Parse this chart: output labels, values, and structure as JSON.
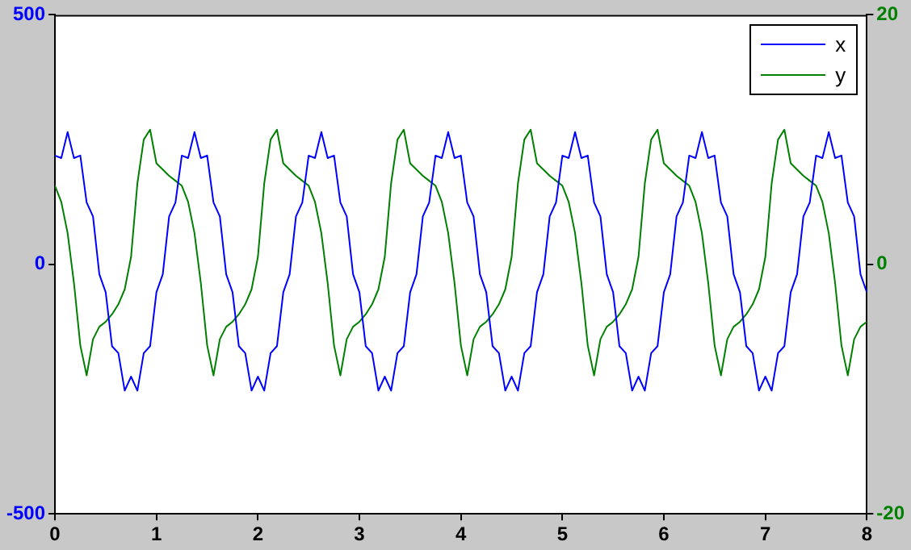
{
  "chart_data": {
    "type": "line",
    "xlim": [
      0,
      8
    ],
    "xticks": [
      0,
      1,
      2,
      3,
      4,
      5,
      6,
      7,
      8
    ],
    "ylim": [
      -500,
      500
    ],
    "yticks": [
      -500,
      0,
      500
    ],
    "y2lim": [
      -20,
      20
    ],
    "y2ticks": [
      -20,
      0,
      20
    ],
    "grid": false,
    "legend": "top right",
    "marker": "none",
    "line_style": "solid",
    "x": [
      0,
      0.0625,
      0.125,
      0.1875,
      0.25,
      0.3125,
      0.375,
      0.4375,
      0.5,
      0.5625,
      0.625,
      0.6875,
      0.75,
      0.8125,
      0.875,
      0.9375,
      1,
      1.0625,
      1.125,
      1.1875,
      1.25,
      1.3125,
      1.375,
      1.4375,
      1.5,
      1.5625,
      1.625,
      1.6875,
      1.75,
      1.8125,
      1.875,
      1.9375,
      2,
      2.0625,
      2.125,
      2.1875,
      2.25,
      2.3125,
      2.375,
      2.4375,
      2.5,
      2.5625,
      2.625,
      2.6875,
      2.75,
      2.8125,
      2.875,
      2.9375,
      3,
      3.0625,
      3.125,
      3.1875,
      3.25,
      3.3125,
      3.375,
      3.4375,
      3.5,
      3.5625,
      3.625,
      3.6875,
      3.75,
      3.8125,
      3.875,
      3.9375,
      4,
      4.0625,
      4.125,
      4.1875,
      4.25,
      4.3125,
      4.375,
      4.4375,
      4.5,
      4.5625,
      4.625,
      4.6875,
      4.75,
      4.8125,
      4.875,
      4.9375,
      5,
      5.0625,
      5.125,
      5.1875,
      5.25,
      5.3125,
      5.375,
      5.4375,
      5.5,
      5.5625,
      5.625,
      5.6875,
      5.75,
      5.8125,
      5.875,
      5.9375,
      6,
      6.0625,
      6.125,
      6.1875,
      6.25,
      6.3125,
      6.375,
      6.4375,
      6.5,
      6.5625,
      6.625,
      6.6875,
      6.75,
      6.8125,
      6.875,
      6.9375,
      7,
      7.0625,
      7.125,
      7.1875,
      7.25,
      7.3125,
      7.375,
      7.4375,
      7.5,
      7.5625,
      7.625,
      7.6875,
      7.75,
      7.8125,
      7.875,
      7.9375,
      8
    ],
    "series": [
      {
        "name": "x",
        "color": "#0000ff",
        "values": [
          218,
          213,
          265,
          213,
          218,
          124,
          96,
          -20,
          -56,
          -164,
          -178,
          -253,
          -225,
          -253,
          -178,
          -164,
          -56,
          -20,
          96,
          124,
          218,
          213,
          265,
          213,
          218,
          124,
          96,
          -20,
          -56,
          -164,
          -178,
          -253,
          -225,
          -253,
          -178,
          -164,
          -56,
          -20,
          96,
          124,
          218,
          213,
          265,
          213,
          218,
          124,
          96,
          -20,
          -56,
          -164,
          -178,
          -253,
          -225,
          -253,
          -178,
          -164,
          -56,
          -20,
          96,
          124,
          218,
          213,
          265,
          213,
          218,
          124,
          96,
          -20,
          -56,
          -164,
          -178,
          -253,
          -225,
          -253,
          -178,
          -164,
          -56,
          -20,
          96,
          124,
          218,
          213,
          265,
          213,
          218,
          124,
          96,
          -20,
          -56,
          -164,
          -178,
          -253,
          -225,
          -253,
          -178,
          -164,
          -56,
          -20,
          96,
          124,
          218,
          213,
          265,
          213,
          218,
          124,
          96,
          -20,
          -56,
          -164,
          -178,
          -253,
          -225,
          -253,
          -178,
          -164,
          -56,
          -20,
          96,
          124,
          218,
          213,
          265,
          213,
          218,
          124,
          96,
          -20,
          -56
        ]
      },
      {
        "name": "y",
        "color": "#008000",
        "axis": "y2",
        "values": [
          6.3,
          5.0,
          2.5,
          -1.5,
          -6.5,
          -8.9,
          -6.0,
          -5.0,
          -4.6,
          -4.0,
          -3.2,
          -2.0,
          0.6,
          6.5,
          10.0,
          10.8,
          8.1,
          7.6,
          7.1,
          6.7,
          6.3,
          5.0,
          2.5,
          -1.5,
          -6.5,
          -8.9,
          -6.0,
          -5.0,
          -4.6,
          -4.0,
          -3.2,
          -2.0,
          0.6,
          6.5,
          10.0,
          10.8,
          8.1,
          7.6,
          7.1,
          6.7,
          6.3,
          5.0,
          2.5,
          -1.5,
          -6.5,
          -8.9,
          -6.0,
          -5.0,
          -4.6,
          -4.0,
          -3.2,
          -2.0,
          0.6,
          6.5,
          10.0,
          10.8,
          8.1,
          7.6,
          7.1,
          6.7,
          6.3,
          5.0,
          2.5,
          -1.5,
          -6.5,
          -8.9,
          -6.0,
          -5.0,
          -4.6,
          -4.0,
          -3.2,
          -2.0,
          0.6,
          6.5,
          10.0,
          10.8,
          8.1,
          7.6,
          7.1,
          6.7,
          6.3,
          5.0,
          2.5,
          -1.5,
          -6.5,
          -8.9,
          -6.0,
          -5.0,
          -4.6,
          -4.0,
          -3.2,
          -2.0,
          0.6,
          6.5,
          10.0,
          10.8,
          8.1,
          7.6,
          7.1,
          6.7,
          6.3,
          5.0,
          2.5,
          -1.5,
          -6.5,
          -8.9,
          -6.0,
          -5.0,
          -4.6,
          -4.0,
          -3.2,
          -2.0,
          0.6,
          6.5,
          10.0,
          10.8,
          8.1,
          7.6,
          7.1,
          6.7,
          6.3,
          5.0,
          2.5,
          -1.5,
          -6.5,
          -8.9,
          -6.0,
          -5.0,
          -4.6
        ]
      }
    ]
  }
}
